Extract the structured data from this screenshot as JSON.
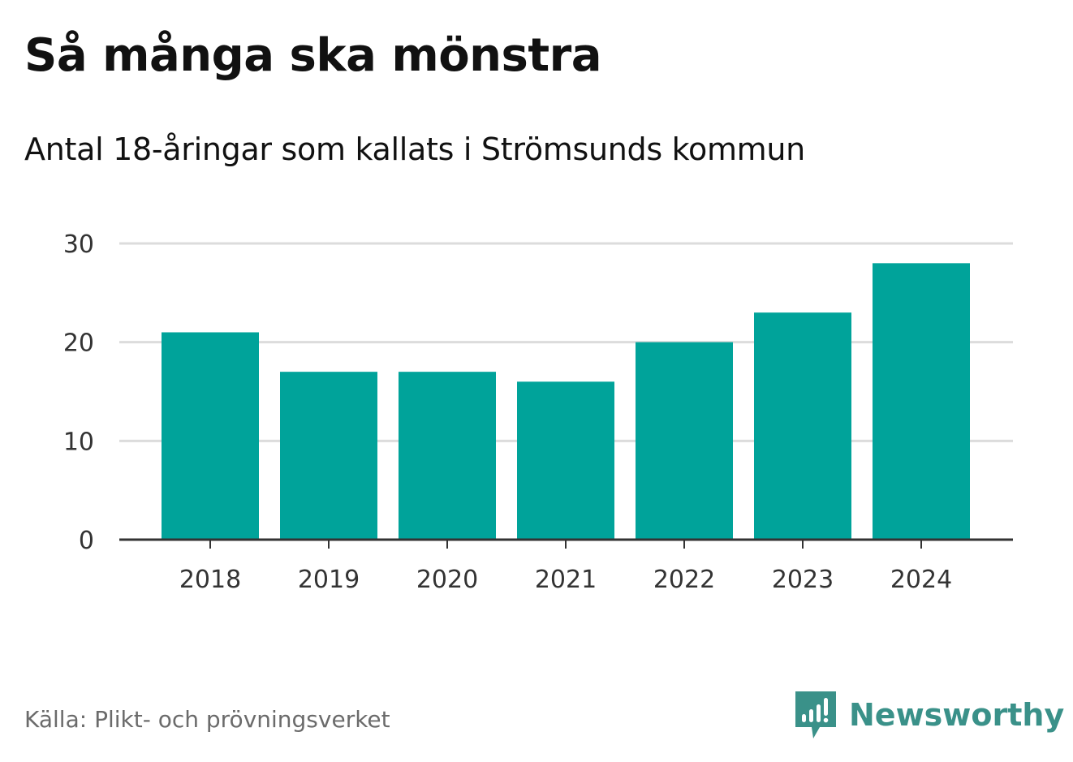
{
  "title": "Så många ska mönstra",
  "subtitle": "Antal 18-åringar som kallats i Strömsunds kommun",
  "source": "Källa: Plikt- och prövningsverket",
  "brand": {
    "name": "Newsworthy",
    "icon": "newsworthy-logo-icon",
    "color": "#3a9189"
  },
  "colors": {
    "bar": "#00a39a",
    "grid": "#dcdcdc",
    "axis": "#333333",
    "text": "#333333"
  },
  "chart_data": {
    "type": "bar",
    "title": "Så många ska mönstra",
    "subtitle": "Antal 18-åringar som kallats i Strömsunds kommun",
    "categories": [
      "2018",
      "2019",
      "2020",
      "2021",
      "2022",
      "2023",
      "2024"
    ],
    "values": [
      21,
      17,
      17,
      16,
      20,
      23,
      28
    ],
    "xlabel": "",
    "ylabel": "",
    "ylim": [
      0,
      30
    ],
    "yticks": [
      0,
      10,
      20,
      30
    ],
    "ytick_labels": [
      "0",
      "10",
      "20",
      "30"
    ],
    "grid": true,
    "legend": "none"
  }
}
